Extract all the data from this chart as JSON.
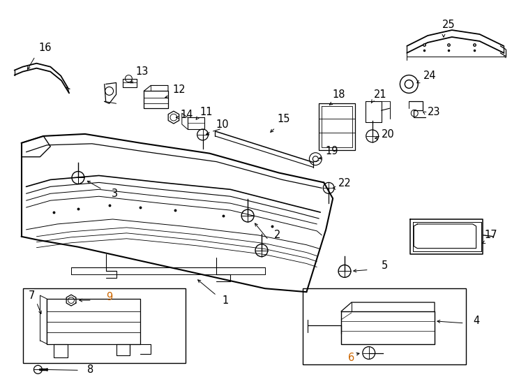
{
  "background_color": "#ffffff",
  "line_color": "#000000",
  "orange_color": "#cc6600",
  "fig_width": 7.34,
  "fig_height": 5.4,
  "dpi": 100
}
